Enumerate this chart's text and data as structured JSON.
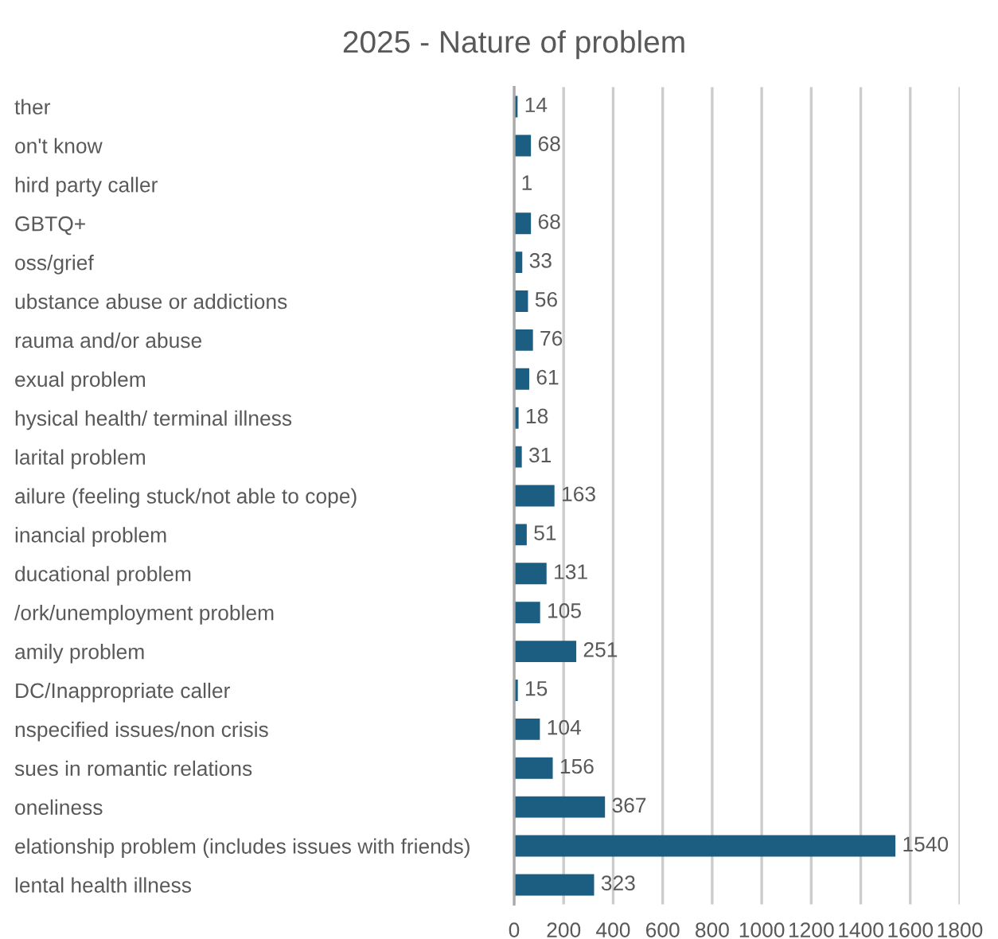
{
  "chart_data": {
    "type": "bar",
    "orientation": "horizontal",
    "title": "2025 - Nature of problem",
    "categories": [
      "ther",
      "on't know",
      "hird party caller",
      "GBTQ+",
      "oss/grief",
      "ubstance abuse or addictions",
      "rauma and/or abuse",
      "exual problem",
      "hysical health/ terminal illness",
      "larital problem",
      "ailure (feeling stuck/not able to cope)",
      "inancial problem",
      "ducational problem",
      "/ork/unemployment problem",
      "amily problem",
      "DC/Inappropriate caller",
      "nspecified issues/non crisis",
      "sues in romantic relations",
      "oneliness",
      "elationship problem (includes issues with friends)",
      "lental health illness"
    ],
    "values": [
      14,
      68,
      1,
      68,
      33,
      56,
      76,
      61,
      18,
      31,
      163,
      51,
      131,
      105,
      251,
      15,
      104,
      156,
      367,
      1540,
      323
    ],
    "color": "#1b5e82",
    "xlim": [
      0,
      1800
    ],
    "xticks": [
      0,
      200,
      400,
      600,
      800,
      1000,
      1200,
      1400,
      1600,
      1800
    ],
    "grid": "x",
    "data_labels": true,
    "legend": false
  }
}
